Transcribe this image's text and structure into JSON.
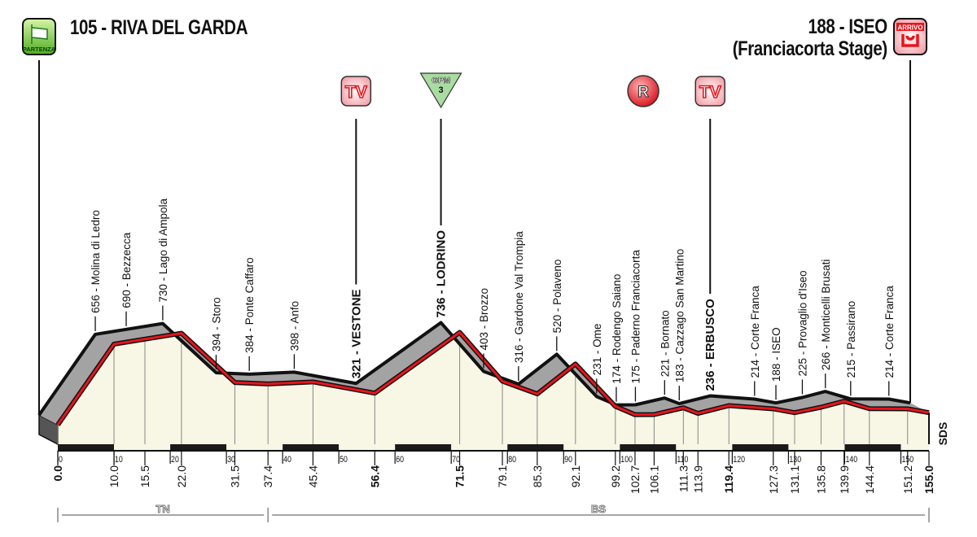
{
  "start": {
    "icon_label": "PARTENZA",
    "title": "105 - RIVA DEL GARDA"
  },
  "finish": {
    "icon_label": "ARRIVO",
    "title": "188 - ISEO",
    "subtitle": "(Franciacorta Stage)"
  },
  "markers": [
    {
      "type": "tv",
      "label": "TV",
      "km": 56.4
    },
    {
      "type": "gpm",
      "label": "GPM",
      "category": "3",
      "km": 71.5
    },
    {
      "type": "sprint",
      "label": "R",
      "km": 107.5
    },
    {
      "type": "tv",
      "label": "TV",
      "km": 119.4
    }
  ],
  "colors": {
    "route": "#e8141c",
    "surface": "#a3a3a3",
    "ground": "#f8f6e4",
    "gpm": "#a8dca0",
    "start": "#5cc02c",
    "finish": "#e8141c"
  },
  "chart_data": {
    "type": "area",
    "xlabel": "",
    "ylabel": "",
    "xlim": [
      0,
      155
    ],
    "points": [
      {
        "km": 0.0,
        "elev": 105,
        "name": "",
        "major": true
      },
      {
        "km": 10.0,
        "elev": 656,
        "name": "Molina di Ledro"
      },
      {
        "km": 15.5,
        "elev": 690,
        "name": "Bezzecca"
      },
      {
        "km": 22.0,
        "elev": 730,
        "name": "Lago di Ampola"
      },
      {
        "km": 31.5,
        "elev": 394,
        "name": "Storo"
      },
      {
        "km": 37.4,
        "elev": 384,
        "name": "Ponte Caffaro"
      },
      {
        "km": 45.4,
        "elev": 398,
        "name": "Anfo"
      },
      {
        "km": 56.4,
        "elev": 321,
        "name": "VESTONE",
        "major": true
      },
      {
        "km": 71.5,
        "elev": 736,
        "name": "LODRINO",
        "major": true
      },
      {
        "km": 79.1,
        "elev": 403,
        "name": "Brozzo"
      },
      {
        "km": 85.3,
        "elev": 316,
        "name": "Gardone Val Trompia"
      },
      {
        "km": 92.1,
        "elev": 520,
        "name": "Polaveno"
      },
      {
        "km": 99.2,
        "elev": 231,
        "name": "Ome"
      },
      {
        "km": 102.7,
        "elev": 174,
        "name": "Rodengo Saiano"
      },
      {
        "km": 106.1,
        "elev": 175,
        "name": "Paderno Franciacorta"
      },
      {
        "km": 111.3,
        "elev": 221,
        "name": "Bornato"
      },
      {
        "km": 113.9,
        "elev": 183,
        "name": "Cazzago San Martino"
      },
      {
        "km": 119.4,
        "elev": 236,
        "name": "ERBUSCO",
        "major": true
      },
      {
        "km": 127.3,
        "elev": 214,
        "name": "Corte Franca"
      },
      {
        "km": 131.1,
        "elev": 188,
        "name": "ISEO"
      },
      {
        "km": 135.8,
        "elev": 225,
        "name": "Provaglio d'Iseo"
      },
      {
        "km": 139.9,
        "elev": 266,
        "name": "Monticelli Brusati"
      },
      {
        "km": 144.4,
        "elev": 215,
        "name": "Passirano"
      },
      {
        "km": 151.2,
        "elev": 214,
        "name": "Corte Franca"
      },
      {
        "km": 155.0,
        "elev": 188,
        "name": "",
        "major": true
      }
    ],
    "km_labels": [
      "0.0",
      "10.0",
      "15.5",
      "22.0",
      "31.5",
      "37.4",
      "45.4",
      "56.4",
      "71.5",
      "79.1",
      "85.3",
      "92.1",
      "99.2",
      "102.7",
      "106.1",
      "111.3",
      "113.9",
      "119.4",
      "127.3",
      "131.1",
      "135.8",
      "139.9",
      "144.4",
      "151.2",
      "155.0"
    ],
    "km_ticks": [
      "0",
      "10",
      "20",
      "30",
      "40",
      "50",
      "60",
      "70",
      "80",
      "90",
      "100",
      "110",
      "120",
      "130",
      "140",
      "150"
    ],
    "regions": [
      {
        "label": "TN",
        "from": 0,
        "to": 37.4
      },
      {
        "label": "BS",
        "from": 37.4,
        "to": 155
      }
    ]
  },
  "signature": "SDS"
}
